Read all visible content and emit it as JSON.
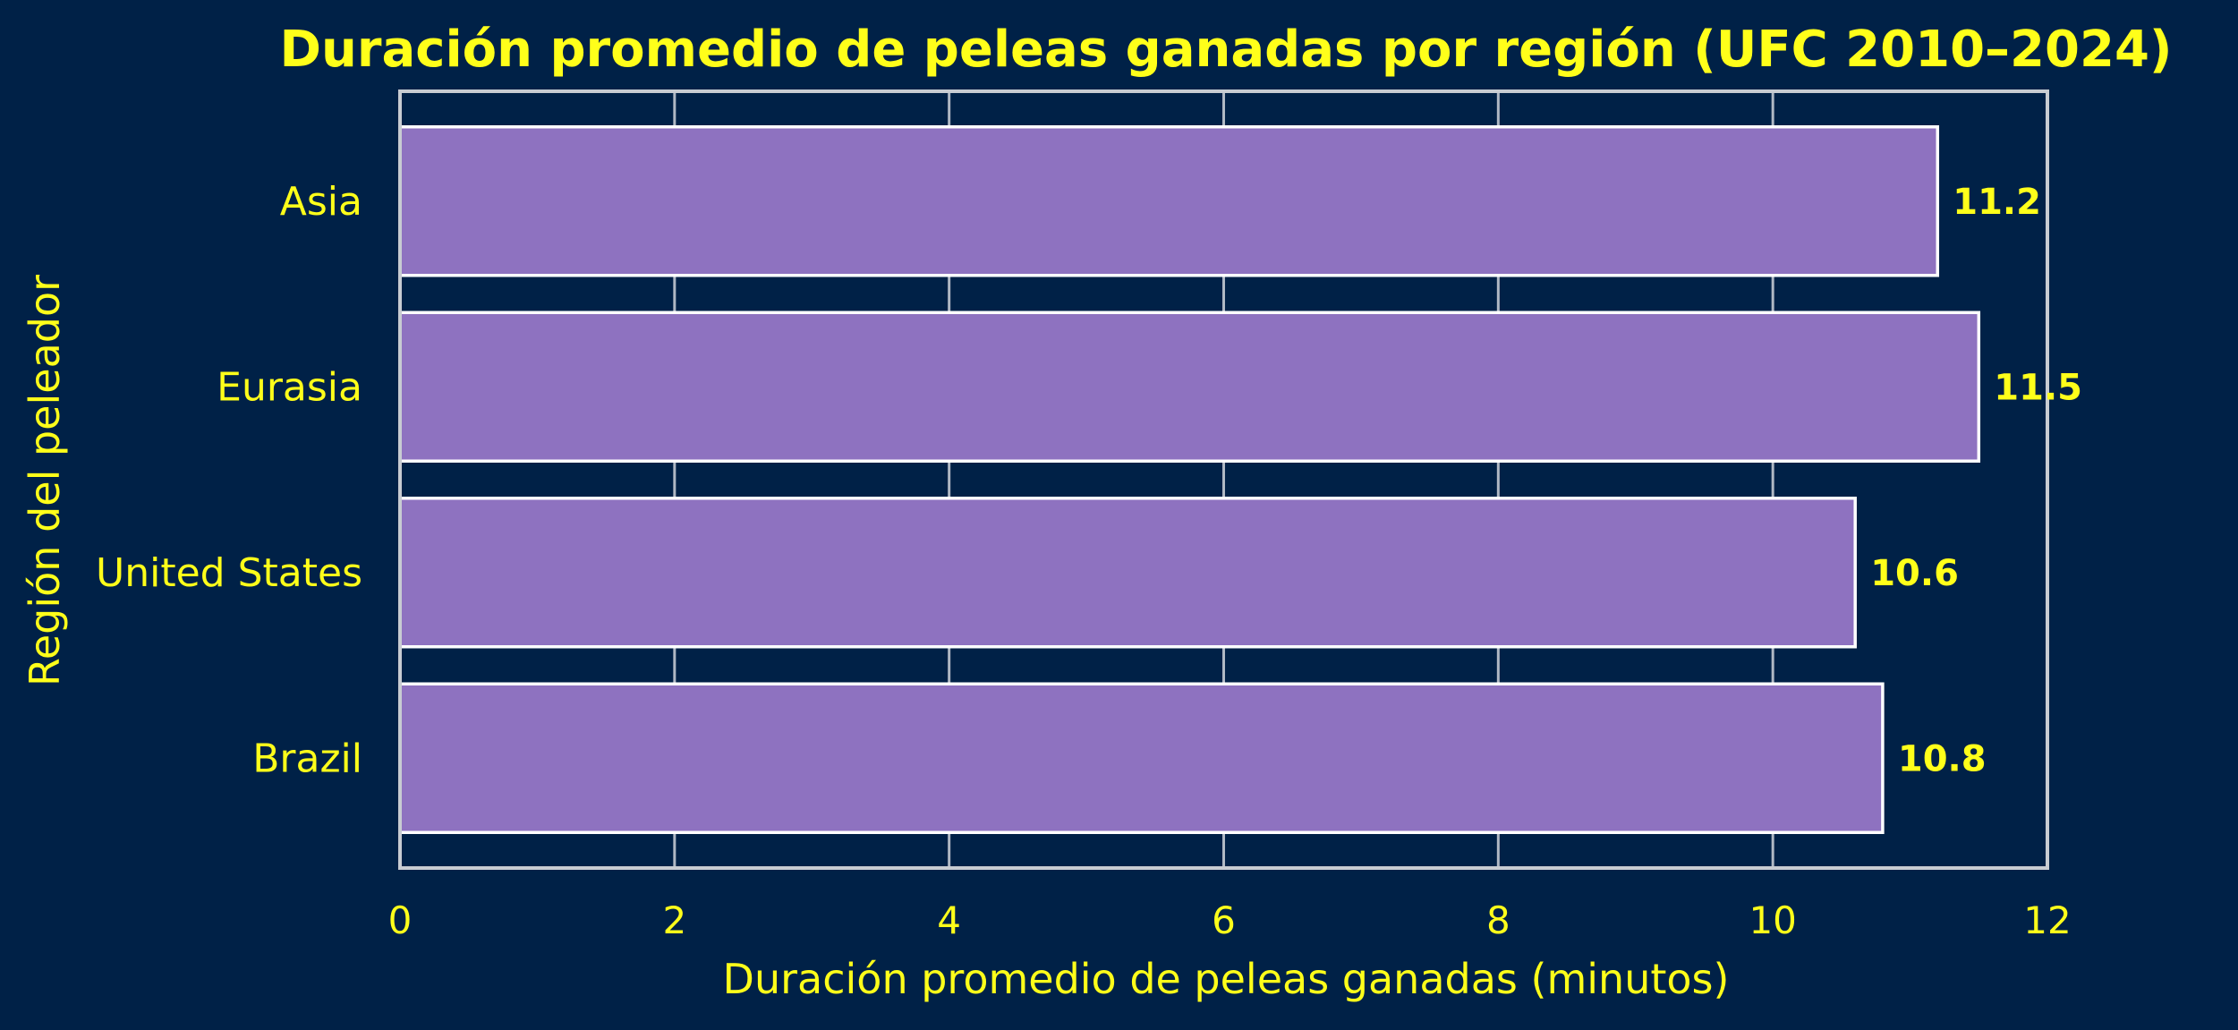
{
  "chart_data": {
    "type": "bar",
    "orientation": "horizontal",
    "title": "Duración promedio de peleas ganadas por región (UFC 2010–2024)",
    "xlabel": "Duración promedio de peleas ganadas (minutos)",
    "ylabel": "Región del peleador",
    "categories": [
      "Asia",
      "Eurasia",
      "United States",
      "Brazil"
    ],
    "values": [
      11.2,
      11.5,
      10.6,
      10.8
    ],
    "value_labels": [
      "11.2",
      "11.5",
      "10.6",
      "10.8"
    ],
    "xlim": [
      0,
      12
    ],
    "xticks": [
      0,
      2,
      4,
      6,
      8,
      10,
      12
    ],
    "xtick_labels": [
      "0",
      "2",
      "4",
      "6",
      "8",
      "10",
      "12"
    ],
    "grid": "vertical",
    "legend": "none"
  },
  "colors": {
    "background": "#002147",
    "bar_fill": "#8E72C0",
    "bar_edge": "#FFFFFF",
    "text": "#FFFF1A",
    "grid": "#B0B8C4",
    "spine": "#C8CCD2"
  }
}
